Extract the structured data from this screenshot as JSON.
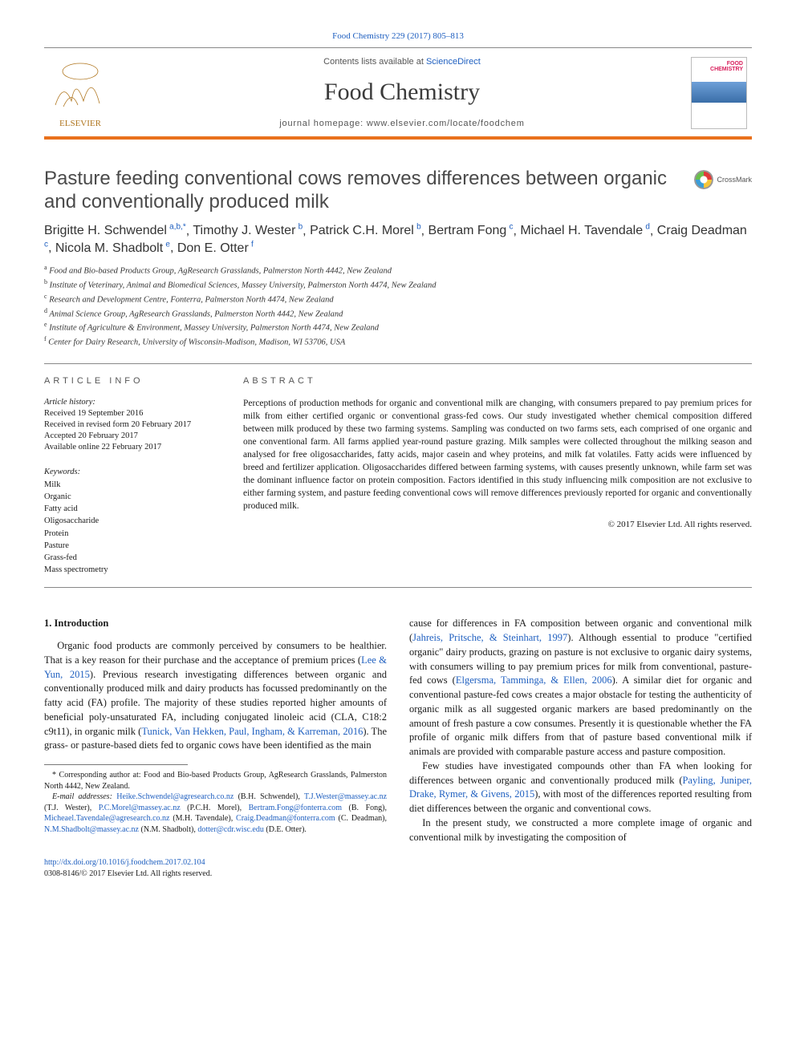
{
  "citation": "Food Chemistry 229 (2017) 805–813",
  "header": {
    "contents_prefix": "Contents lists available at ",
    "contents_link": "ScienceDirect",
    "journal": "Food Chemistry",
    "homepage_prefix": "journal homepage: ",
    "homepage_url": "www.elsevier.com/locate/foodchem",
    "cover_label1": "FOOD",
    "cover_label2": "CHEMISTRY"
  },
  "crossmark_label": "CrossMark",
  "title": "Pasture feeding conventional cows removes differences between organic and conventionally produced milk",
  "authors": [
    {
      "name": "Brigitte H. Schwendel",
      "sup": "a,b,",
      "star": "*"
    },
    {
      "name": "Timothy J. Wester",
      "sup": "b"
    },
    {
      "name": "Patrick C.H. Morel",
      "sup": "b"
    },
    {
      "name": "Bertram Fong",
      "sup": "c"
    },
    {
      "name": "Michael H. Tavendale",
      "sup": "d"
    },
    {
      "name": "Craig Deadman",
      "sup": "c"
    },
    {
      "name": "Nicola M. Shadbolt",
      "sup": "e"
    },
    {
      "name": "Don E. Otter",
      "sup": "f"
    }
  ],
  "affiliations": [
    {
      "sup": "a",
      "text": "Food and Bio-based Products Group, AgResearch Grasslands, Palmerston North 4442, New Zealand"
    },
    {
      "sup": "b",
      "text": "Institute of Veterinary, Animal and Biomedical Sciences, Massey University, Palmerston North 4474, New Zealand"
    },
    {
      "sup": "c",
      "text": "Research and Development Centre, Fonterra, Palmerston North 4474, New Zealand"
    },
    {
      "sup": "d",
      "text": "Animal Science Group, AgResearch Grasslands, Palmerston North 4442, New Zealand"
    },
    {
      "sup": "e",
      "text": "Institute of Agriculture & Environment, Massey University, Palmerston North 4474, New Zealand"
    },
    {
      "sup": "f",
      "text": "Center for Dairy Research, University of Wisconsin-Madison, Madison, WI 53706, USA"
    }
  ],
  "info": {
    "label": "ARTICLE INFO",
    "history_title": "Article history:",
    "history": [
      "Received 19 September 2016",
      "Received in revised form 20 February 2017",
      "Accepted 20 February 2017",
      "Available online 22 February 2017"
    ],
    "keywords_title": "Keywords:",
    "keywords": [
      "Milk",
      "Organic",
      "Fatty acid",
      "Oligosaccharide",
      "Protein",
      "Pasture",
      "Grass-fed",
      "Mass spectrometry"
    ]
  },
  "abstract": {
    "label": "ABSTRACT",
    "text": "Perceptions of production methods for organic and conventional milk are changing, with consumers prepared to pay premium prices for milk from either certified organic or conventional grass-fed cows. Our study investigated whether chemical composition differed between milk produced by these two farming systems. Sampling was conducted on two farms sets, each comprised of one organic and one conventional farm. All farms applied year-round pasture grazing. Milk samples were collected throughout the milking season and analysed for free oligosaccharides, fatty acids, major casein and whey proteins, and milk fat volatiles. Fatty acids were influenced by breed and fertilizer application. Oligosaccharides differed between farming systems, with causes presently unknown, while farm set was the dominant influence factor on protein composition. Factors identified in this study influencing milk composition are not exclusive to either farming system, and pasture feeding conventional cows will remove differences previously reported for organic and conventionally produced milk.",
    "copyright": "© 2017 Elsevier Ltd. All rights reserved."
  },
  "body": {
    "section_heading": "1. Introduction",
    "p1_a": "Organic food products are commonly perceived by consumers to be healthier. That is a key reason for their purchase and the acceptance of premium prices (",
    "p1_ref1": "Lee & Yun, 2015",
    "p1_b": "). Previous research investigating differences between organic and conventionally produced milk and dairy products has focussed predominantly on the fatty acid (FA) profile. The majority of these studies reported higher amounts of beneficial poly-unsaturated FA, including conjugated linoleic acid (CLA, C18:2 c9t11), in organic milk (",
    "p1_ref2": "Tunick, Van Hekken, Paul, Ingham, & Karreman, 2016",
    "p1_c": "). The grass- or pasture-based diets fed to organic cows have been identified as the main",
    "p2_a": "cause for differences in FA composition between organic and conventional milk (",
    "p2_ref1": "Jahreis, Pritsche, & Steinhart, 1997",
    "p2_b": "). Although essential to produce \"certified organic\" dairy products, grazing on pasture is not exclusive to organic dairy systems, with consumers willing to pay premium prices for milk from conventional, pasture-fed cows (",
    "p2_ref2": "Elgersma, Tamminga, & Ellen, 2006",
    "p2_c": "). A similar diet for organic and conventional pasture-fed cows creates a major obstacle for testing the authenticity of organic milk as all suggested organic markers are based predominantly on the amount of fresh pasture a cow consumes. Presently it is questionable whether the FA profile of organic milk differs from that of pasture based conventional milk if animals are provided with comparable pasture access and pasture composition.",
    "p3_a": "Few studies have investigated compounds other than FA when looking for differences between organic and conventionally produced milk (",
    "p3_ref1": "Payling, Juniper, Drake, Rymer, & Givens, 2015",
    "p3_b": "), with most of the differences reported resulting from diet differences between the organic and conventional cows.",
    "p4": "In the present study, we constructed a more complete image of organic and conventional milk by investigating the composition of"
  },
  "footnotes": {
    "corr_label": "* Corresponding author at: Food and Bio-based Products Group, AgResearch Grasslands, Palmerston North 4442, New Zealand.",
    "email_label": "E-mail addresses:",
    "emails": [
      {
        "addr": "Heike.Schwendel@agresearch.co.nz",
        "who": "(B.H. Schwendel)"
      },
      {
        "addr": "T.J.Wester@massey.ac.nz",
        "who": "(T.J. Wester)"
      },
      {
        "addr": "P.C.Morel@massey.ac.nz",
        "who": "(P.C.H. Morel)"
      },
      {
        "addr": "Bertram.Fong@fonterra.com",
        "who": "(B. Fong)"
      },
      {
        "addr": "Micheael.Tavendale@agresearch.co.nz",
        "who": "(M.H. Tavendale)"
      },
      {
        "addr": "Craig.Deadman@fonterra.com",
        "who": "(C. Deadman)"
      },
      {
        "addr": "N.M.Shadbolt@massey.ac.nz",
        "who": "(N.M. Shadbolt)"
      },
      {
        "addr": "dotter@cdr.wisc.edu",
        "who": "(D.E. Otter)"
      }
    ]
  },
  "doi": {
    "url": "http://dx.doi.org/10.1016/j.foodchem.2017.02.104",
    "issn_line": "0308-8146/© 2017 Elsevier Ltd. All rights reserved."
  },
  "colors": {
    "link": "#2060c0",
    "accent": "#e9711c",
    "text": "#1a1a1a"
  }
}
